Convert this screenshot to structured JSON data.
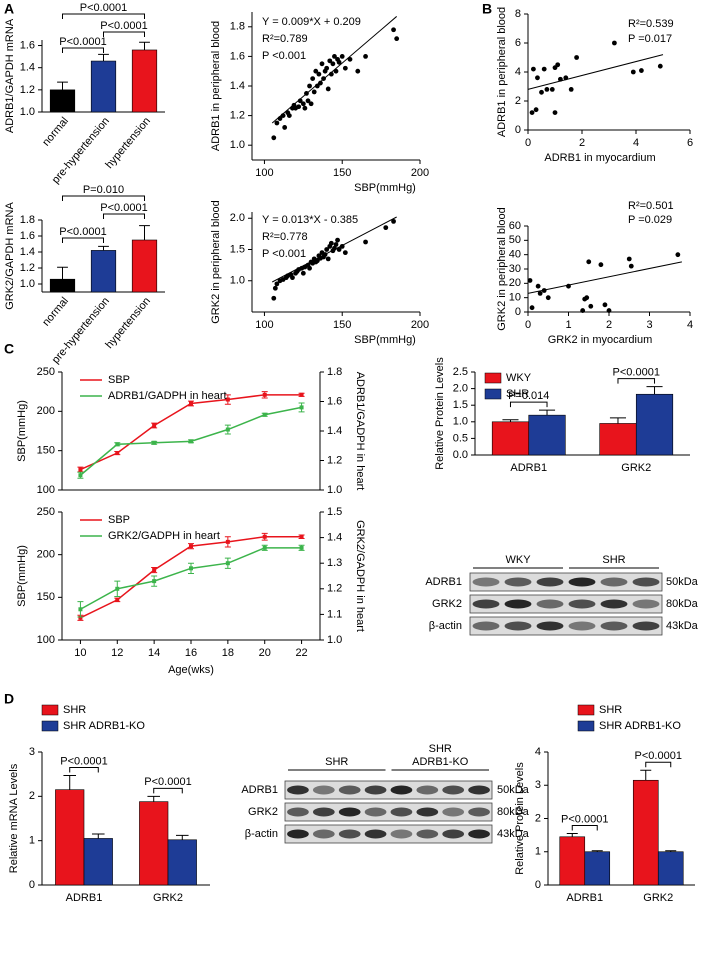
{
  "panels": [
    "A",
    "B",
    "C",
    "D"
  ],
  "chart_data": [
    {
      "type": "bar",
      "ylabel": "ADRB1/GAPDH mRNA",
      "categories": [
        "normal",
        "pre-hypertension",
        "hypertension"
      ],
      "values": [
        1.2,
        1.46,
        1.56
      ],
      "errors": [
        0.07,
        0.06,
        0.07
      ],
      "colors": [
        "#000000",
        "#1e3c96",
        "#e8141c"
      ],
      "ylim": [
        1.0,
        1.65
      ],
      "yticks": [
        {
          "value": 1,
          "label": "1.0"
        },
        1.2,
        1.4,
        1.6
      ],
      "significance": [
        "P<0.0001",
        "P<0.0001",
        "P<0.0001"
      ]
    },
    {
      "type": "scatter",
      "ylabel": "ADRB1 in peripheral blood",
      "xlabel": "SBP(mmHg)",
      "annotations": [
        "Y = 0.009*X + 0.209",
        "R²=0.789",
        "P <0.001"
      ],
      "color": "#000000",
      "x": [
        106,
        108,
        110,
        112,
        113,
        115,
        116,
        118,
        119,
        120,
        122,
        123,
        125,
        126,
        127,
        128,
        129,
        130,
        131,
        132,
        133,
        134,
        135,
        136,
        137,
        138,
        139,
        140,
        141,
        142,
        143,
        144,
        145,
        146,
        147,
        148,
        150,
        152,
        155,
        160,
        165,
        183,
        185
      ],
      "values": [
        1.05,
        1.15,
        1.18,
        1.2,
        1.12,
        1.22,
        1.2,
        1.25,
        1.27,
        1.25,
        1.26,
        1.3,
        1.28,
        1.25,
        1.35,
        1.3,
        1.4,
        1.28,
        1.45,
        1.36,
        1.5,
        1.4,
        1.48,
        1.42,
        1.55,
        1.45,
        1.5,
        1.52,
        1.38,
        1.57,
        1.48,
        1.55,
        1.6,
        1.5,
        1.58,
        1.56,
        1.6,
        1.52,
        1.58,
        1.5,
        1.6,
        1.78,
        1.72
      ],
      "trendline": {
        "x": [
          105,
          185
        ],
        "values": [
          1.15,
          1.87
        ]
      },
      "xlim": [
        92,
        200
      ],
      "xticks": [
        100,
        150,
        200
      ],
      "ylim": [
        0.9,
        1.9
      ],
      "yticks": [
        {
          "value": 1,
          "label": "1.0"
        },
        1.2,
        1.4,
        1.6,
        1.8
      ]
    },
    {
      "type": "bar",
      "ylabel": "GRK2/GAPDH mRNA",
      "categories": [
        "normal",
        "pre-hypertension",
        "hypertension"
      ],
      "values": [
        1.06,
        1.42,
        1.55
      ],
      "errors": [
        0.15,
        0.05,
        0.18
      ],
      "colors": [
        "#000000",
        "#1e3c96",
        "#e8141c"
      ],
      "ylim": [
        0.9,
        1.8
      ],
      "yticks": [
        {
          "value": 1,
          "label": "1.0"
        },
        1.2,
        1.4,
        1.6,
        1.8
      ],
      "significance": [
        "P=0.010",
        "P<0.0001",
        "P<0.0001"
      ]
    },
    {
      "type": "scatter",
      "ylabel": "GRK2 in peripheral blood",
      "xlabel": "SBP(mmHg)",
      "annotations": [
        "Y = 0.013*X - 0.385",
        "R²=0.778",
        "P <0.001"
      ],
      "color": "#000000",
      "x": [
        106,
        107,
        108,
        110,
        112,
        114,
        115,
        117,
        118,
        120,
        121,
        122,
        124,
        125,
        126,
        128,
        129,
        130,
        131,
        132,
        133,
        134,
        135,
        136,
        137,
        138,
        139,
        140,
        141,
        142,
        143,
        144,
        145,
        146,
        147,
        148,
        150,
        152,
        165,
        178,
        183
      ],
      "values": [
        0.72,
        0.88,
        0.95,
        1.0,
        1.02,
        1.05,
        1.08,
        1.1,
        1.05,
        1.12,
        1.15,
        1.18,
        1.2,
        1.12,
        1.22,
        1.25,
        1.2,
        1.3,
        1.28,
        1.35,
        1.3,
        1.32,
        1.4,
        1.36,
        1.45,
        1.38,
        1.42,
        1.5,
        1.35,
        1.55,
        1.6,
        1.48,
        1.52,
        1.58,
        1.65,
        1.5,
        1.55,
        1.45,
        1.62,
        1.85,
        1.95
      ],
      "trendline": {
        "x": [
          105,
          185
        ],
        "values": [
          0.98,
          2.02
        ]
      },
      "xlim": [
        92,
        200
      ],
      "xticks": [
        100,
        150,
        200
      ],
      "ylim": [
        0.5,
        2.1
      ],
      "yticks": [
        {
          "value": 1,
          "label": "1.0"
        },
        1.5,
        {
          "value": 2,
          "label": "2.0"
        }
      ]
    },
    {
      "type": "scatter",
      "ylabel": "ADRB1 in peripheral blood",
      "xlabel": "ADRB1 in myocardium",
      "annotations": [
        "R²=0.539",
        "P =0.017"
      ],
      "color": "#000000",
      "x": [
        0.15,
        0.2,
        0.3,
        0.35,
        0.5,
        0.6,
        0.7,
        0.9,
        1.0,
        1.0,
        1.1,
        1.2,
        1.4,
        1.6,
        1.8,
        3.2,
        3.9,
        4.2,
        4.9
      ],
      "values": [
        1.2,
        4.2,
        1.4,
        3.6,
        2.6,
        4.2,
        2.8,
        2.8,
        4.3,
        1.2,
        4.5,
        3.5,
        3.6,
        2.8,
        5.0,
        6.0,
        4.0,
        4.1,
        4.4
      ],
      "trendline": {
        "x": [
          0,
          5
        ],
        "values": [
          2.8,
          5.2
        ]
      },
      "xlim": [
        0,
        6
      ],
      "xticks": [
        0,
        2,
        4,
        6
      ],
      "ylim": [
        0,
        8
      ],
      "yticks": [
        0,
        2,
        4,
        6,
        8
      ]
    },
    {
      "type": "scatter",
      "ylabel": "GRK2 in peripheral blood",
      "xlabel": "GRK2 in myocardium",
      "annotations": [
        "R²=0.501",
        "P =0.029"
      ],
      "color": "#000000",
      "x": [
        0.05,
        0.1,
        0.25,
        0.3,
        0.4,
        0.5,
        1.0,
        1.35,
        1.4,
        1.45,
        1.5,
        1.55,
        1.8,
        1.9,
        2.0,
        2.5,
        2.55,
        3.7
      ],
      "values": [
        22,
        3,
        18,
        13,
        15,
        10,
        18,
        1,
        9,
        10,
        35,
        4,
        33,
        5,
        1,
        37,
        32,
        40
      ],
      "trendline": {
        "x": [
          0,
          3.8
        ],
        "values": [
          13,
          35
        ]
      },
      "xlim": [
        0,
        4
      ],
      "xticks": [
        0,
        1,
        2,
        3,
        4
      ],
      "ylim": [
        0,
        60
      ],
      "yticks": [
        0,
        10,
        20,
        30,
        40,
        50,
        60
      ]
    },
    {
      "type": "line",
      "ylabel": "SBP(mmHg)",
      "y2label": "ADRB1/GADPH in heart",
      "x": [
        10,
        12,
        14,
        16,
        18,
        20,
        22
      ],
      "xlim": [
        9,
        23
      ],
      "series": [
        {
          "name": "SBP",
          "color": "#e8141c",
          "values": [
            126,
            147,
            182,
            210,
            215,
            221,
            221
          ],
          "errors": [
            3,
            2,
            3,
            3,
            6,
            4,
            2
          ]
        },
        {
          "name": "ADRB1/GADPH in heart",
          "color": "#3cb44b",
          "axis": "y2",
          "values": [
            1.1,
            1.31,
            1.32,
            1.33,
            1.41,
            1.51,
            1.56
          ],
          "errors": [
            0.02,
            0.01,
            0.01,
            0.01,
            0.03,
            0.01,
            0.03
          ]
        }
      ],
      "ylim": [
        100,
        250
      ],
      "yticks": [
        100,
        150,
        200,
        250
      ],
      "y2lim": [
        1.0,
        1.8
      ],
      "y2ticks": [
        {
          "value": 1,
          "label": "1.0"
        },
        1.2,
        1.4,
        1.6,
        1.8
      ]
    },
    {
      "type": "line",
      "ylabel": "SBP(mmHg)",
      "y2label": "GRK2/GADPH in heart",
      "xlabel": "Age(wks)",
      "x": [
        10,
        12,
        14,
        16,
        18,
        20,
        22
      ],
      "xlim": [
        9,
        23
      ],
      "xticks": [
        10,
        12,
        14,
        16,
        18,
        20,
        22
      ],
      "series": [
        {
          "name": "SBP",
          "color": "#e8141c",
          "values": [
            126,
            147,
            182,
            210,
            215,
            221,
            221
          ],
          "errors": [
            3,
            2,
            3,
            3,
            6,
            4,
            2
          ]
        },
        {
          "name": "GRK2/GADPH in heart",
          "color": "#3cb44b",
          "axis": "y2",
          "values": [
            1.12,
            1.2,
            1.23,
            1.28,
            1.3,
            1.36,
            1.36
          ],
          "errors": [
            0.03,
            0.03,
            0.02,
            0.02,
            0.02,
            0.01,
            0.01
          ]
        }
      ],
      "ylim": [
        100,
        250
      ],
      "yticks": [
        100,
        150,
        200,
        250
      ],
      "y2lim": [
        1.0,
        1.5
      ],
      "y2ticks": [
        {
          "value": 1,
          "label": "1.0"
        },
        1.1,
        1.2,
        1.3,
        1.4,
        1.5
      ]
    },
    {
      "type": "bar",
      "ylabel": "Relative Protein Levels",
      "categories": [
        "ADRB1",
        "GRK2"
      ],
      "series": [
        {
          "name": "WKY",
          "color": "#e8141c",
          "values": [
            1.0,
            0.95
          ],
          "errors": [
            0.06,
            0.17
          ]
        },
        {
          "name": "SHR",
          "color": "#1e3c96",
          "values": [
            1.2,
            1.83
          ],
          "errors": [
            0.15,
            0.23
          ]
        }
      ],
      "ylim": [
        0,
        2.5
      ],
      "yticks": [
        {
          "value": 0,
          "label": "0.0"
        },
        0.5,
        {
          "value": 1,
          "label": "1.0"
        },
        1.5,
        {
          "value": 2,
          "label": "2.0"
        },
        2.5
      ],
      "significance": [
        "P=0.014",
        "P<0.0001"
      ]
    },
    {
      "type": "bar",
      "ylabel": "Relative mRNA Levels",
      "categories": [
        "ADRB1",
        "GRK2"
      ],
      "series": [
        {
          "name": "SHR",
          "color": "#e8141c",
          "values": [
            2.15,
            1.88
          ],
          "errors": [
            0.32,
            0.12
          ]
        },
        {
          "name": "SHR ADRB1-KO",
          "color": "#1e3c96",
          "values": [
            1.05,
            1.02
          ],
          "errors": [
            0.1,
            0.1
          ]
        }
      ],
      "ylim": [
        0,
        3
      ],
      "yticks": [
        0,
        1,
        2,
        3
      ],
      "significance": [
        "P<0.0001",
        "P<0.0001"
      ]
    },
    {
      "type": "bar",
      "ylabel": "Relative Protein Levels",
      "categories": [
        "ADRB1",
        "GRK2"
      ],
      "series": [
        {
          "name": "SHR",
          "color": "#e8141c",
          "values": [
            1.45,
            3.15
          ],
          "errors": [
            0.1,
            0.3
          ]
        },
        {
          "name": "SHR ADRB1-KO",
          "color": "#1e3c96",
          "values": [
            1.0,
            1.0
          ],
          "errors": [
            0.03,
            0.03
          ]
        }
      ],
      "ylim": [
        0,
        4
      ],
      "yticks": [
        0,
        1,
        2,
        3,
        4
      ],
      "significance": [
        "P<0.0001",
        "P<0.0001"
      ]
    }
  ],
  "blots": [
    {
      "groups": [
        [
          "WKY"
        ],
        [
          "SHR"
        ]
      ],
      "rows": [
        "ADRB1",
        "GRK2",
        "β-actin"
      ],
      "sizes": [
        "50kDa",
        "80kDa",
        "43kDa"
      ]
    },
    {
      "groups": [
        [
          "SHR"
        ],
        [
          "SHR",
          "ADRB1-KO"
        ]
      ],
      "rows": [
        "ADRB1",
        "GRK2",
        "β-actin"
      ],
      "sizes": [
        "50kDa",
        "80kDa",
        "43kDa"
      ]
    }
  ]
}
